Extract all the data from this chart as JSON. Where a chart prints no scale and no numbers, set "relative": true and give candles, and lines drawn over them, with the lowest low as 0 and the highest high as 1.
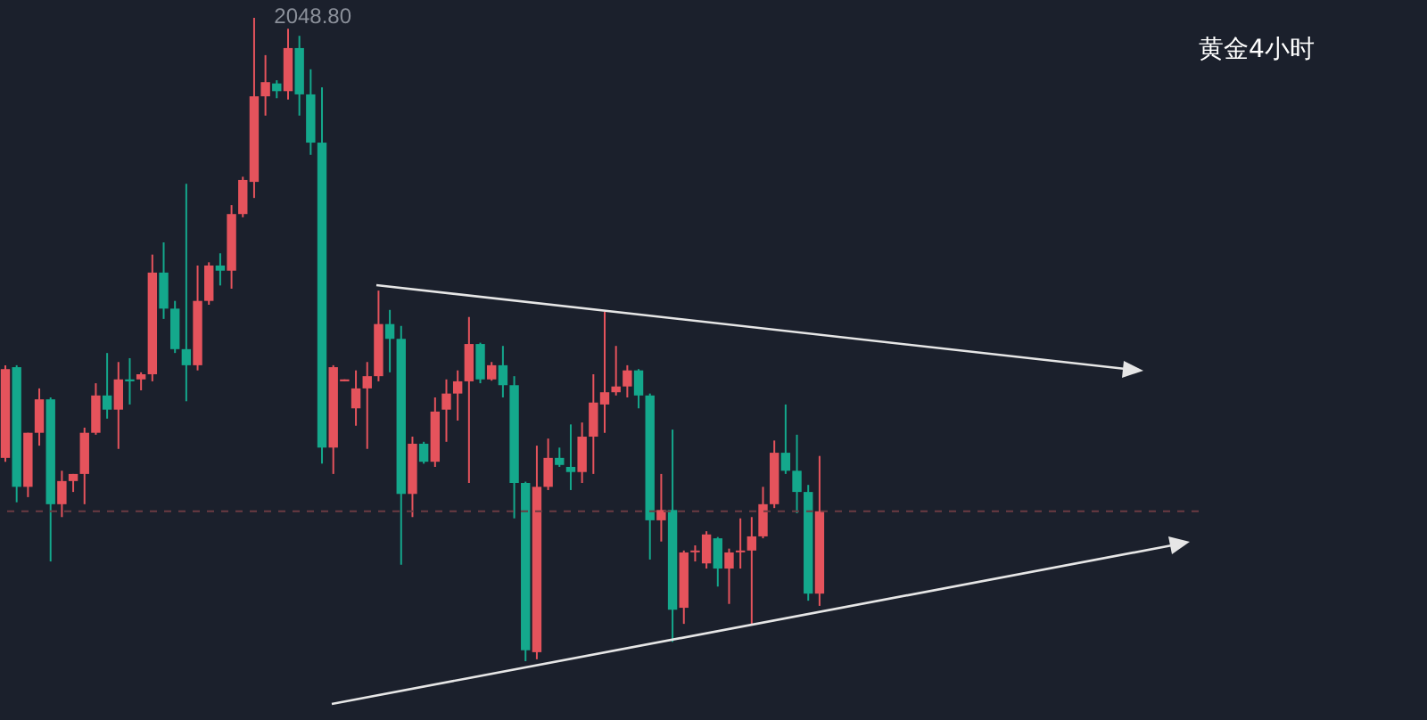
{
  "chart_data": {
    "type": "candlestick",
    "title": "黄金4小时",
    "relative": true,
    "categories": [
      null,
      null,
      null,
      null,
      null,
      null,
      null,
      null,
      null,
      null,
      null,
      null,
      null,
      null,
      null,
      null,
      null,
      null,
      null,
      null,
      null,
      null,
      null,
      null,
      null,
      null,
      null,
      null,
      null,
      null,
      null,
      null,
      null,
      null,
      null,
      null,
      null,
      null,
      null,
      null,
      null,
      null,
      null,
      null,
      null,
      null,
      null,
      null,
      null,
      null,
      null,
      null,
      null,
      null,
      null,
      null,
      null,
      null,
      null,
      null,
      null,
      null,
      null,
      null,
      null,
      null,
      null,
      null,
      null,
      null,
      null,
      null,
      null,
      null,
      null,
      null,
      null,
      null,
      null,
      null,
      null,
      null,
      null,
      null,
      null,
      null,
      null,
      null,
      null,
      null,
      null,
      null,
      null,
      null,
      null,
      null,
      null,
      null,
      null,
      null,
      null,
      null,
      null,
      null,
      null,
      null
    ],
    "ohlc": [
      [
        0.316,
        0.46,
        0.31,
        0.454
      ],
      [
        0.457,
        0.46,
        0.247,
        0.271
      ],
      [
        0.271,
        0.355,
        0.255,
        0.355
      ],
      [
        0.355,
        0.424,
        0.335,
        0.407
      ],
      [
        0.407,
        0.41,
        0.155,
        0.244
      ],
      [
        0.244,
        0.296,
        0.224,
        0.28
      ],
      [
        0.28,
        0.291,
        0.263,
        0.291
      ],
      [
        0.291,
        0.363,
        0.244,
        0.355
      ],
      [
        0.355,
        0.432,
        0.352,
        0.413
      ],
      [
        0.413,
        0.479,
        0.377,
        0.391
      ],
      [
        0.391,
        0.465,
        0.33,
        0.438
      ],
      [
        0.438,
        0.471,
        0.399,
        0.435
      ],
      [
        0.438,
        0.449,
        0.421,
        0.446
      ],
      [
        0.446,
        0.632,
        0.435,
        0.604
      ],
      [
        0.604,
        0.651,
        0.532,
        0.548
      ],
      [
        0.548,
        0.56,
        0.479,
        0.485
      ],
      [
        0.485,
        0.742,
        0.404,
        0.46
      ],
      [
        0.46,
        0.615,
        0.452,
        0.56
      ],
      [
        0.56,
        0.62,
        0.554,
        0.615
      ],
      [
        0.615,
        0.634,
        0.584,
        0.607
      ],
      [
        0.607,
        0.709,
        0.579,
        0.695
      ],
      [
        0.695,
        0.753,
        0.69,
        0.748
      ],
      [
        0.745,
        1,
        0.72,
        0.878
      ],
      [
        0.878,
        0.942,
        0.848,
        0.9
      ],
      [
        0.898,
        0.903,
        0.875,
        0.886
      ],
      [
        0.886,
        0.983,
        0.873,
        0.953
      ],
      [
        0.953,
        0.972,
        0.848,
        0.881
      ],
      [
        0.881,
        0.92,
        0.787,
        0.806
      ],
      [
        0.806,
        0.892,
        0.307,
        0.332
      ],
      [
        0.332,
        0.46,
        0.291,
        0.457
      ],
      [
        0.435,
        0.438,
        0.435,
        0.438
      ],
      [
        0.393,
        0.452,
        0.366,
        0.424
      ],
      [
        0.424,
        0.465,
        0.33,
        0.443
      ],
      [
        0.443,
        0.576,
        0.435,
        0.524
      ],
      [
        0.524,
        0.546,
        0.449,
        0.501
      ],
      [
        0.501,
        0.521,
        0.15,
        0.26
      ],
      [
        0.26,
        0.349,
        0.224,
        0.338
      ],
      [
        0.338,
        0.341,
        0.307,
        0.31
      ],
      [
        0.31,
        0.41,
        0.302,
        0.388
      ],
      [
        0.391,
        0.438,
        0.341,
        0.416
      ],
      [
        0.416,
        0.452,
        0.374,
        0.435
      ],
      [
        0.435,
        0.535,
        0.277,
        0.493
      ],
      [
        0.493,
        0.495,
        0.432,
        0.438
      ],
      [
        0.438,
        0.465,
        0.436,
        0.46
      ],
      [
        0.46,
        0.49,
        0.41,
        0.429
      ],
      [
        0.429,
        0.443,
        0.222,
        0.277
      ],
      [
        0.277,
        0.279,
        0,
        0.017
      ],
      [
        0.014,
        0.335,
        0.003,
        0.271
      ],
      [
        0.271,
        0.346,
        0.266,
        0.316
      ],
      [
        0.316,
        0.332,
        0.302,
        0.305
      ],
      [
        0.302,
        0.368,
        0.266,
        0.294
      ],
      [
        0.294,
        0.371,
        0.277,
        0.349
      ],
      [
        0.349,
        0.446,
        0.291,
        0.402
      ],
      [
        0.399,
        0.543,
        0.355,
        0.418
      ],
      [
        0.418,
        0.49,
        0.413,
        0.427
      ],
      [
        0.427,
        0.46,
        0.41,
        0.452
      ],
      [
        0.452,
        0.454,
        0.393,
        0.413
      ],
      [
        0.413,
        0.416,
        0.158,
        0.219
      ],
      [
        0.219,
        0.291,
        0.186,
        0.235
      ],
      [
        0.235,
        0.36,
        0.03,
        0.08
      ],
      [
        0.083,
        0.172,
        0.058,
        0.169
      ],
      [
        0.17,
        0.18,
        0.155,
        0.172
      ],
      [
        0.152,
        0.202,
        0.144,
        0.197
      ],
      [
        0.191,
        0.193,
        0.116,
        0.144
      ],
      [
        0.144,
        0.175,
        0.089,
        0.169
      ],
      [
        0.17,
        0.222,
        0.144,
        0.172
      ],
      [
        0.172,
        0.224,
        0.058,
        0.194
      ],
      [
        0.194,
        0.271,
        0.191,
        0.244
      ],
      [
        0.244,
        0.343,
        0.238,
        0.324
      ],
      [
        0.324,
        0.399,
        0.291,
        0.296
      ],
      [
        0.296,
        0.352,
        0.23,
        0.263
      ],
      [
        0.263,
        0.274,
        0.094,
        0.105
      ],
      [
        0.105,
        0.319,
        0.086,
        0.233
      ],
      null,
      null,
      null,
      null,
      null,
      null,
      null,
      null,
      null,
      null,
      null,
      null,
      null,
      null,
      null,
      null,
      null,
      null,
      null,
      null,
      null,
      null,
      null,
      null,
      null,
      null,
      null,
      null,
      null,
      null,
      null,
      null,
      null
    ],
    "colors": [
      "#e5535c",
      "#14a88c",
      "#e5535c",
      "#e5535c",
      "#14a88c",
      "#e5535c",
      "#e5535c",
      "#e5535c",
      "#e5535c",
      "#14a88c",
      "#e5535c",
      "#14a88c",
      "#e5535c",
      "#e5535c",
      "#14a88c",
      "#14a88c",
      "#14a88c",
      "#e5535c",
      "#e5535c",
      "#14a88c",
      "#e5535c",
      "#e5535c",
      "#e5535c",
      "#e5535c",
      "#14a88c",
      "#e5535c",
      "#14a88c",
      "#14a88c",
      "#14a88c",
      "#e5535c",
      "#e5535c",
      "#e5535c",
      "#e5535c",
      "#e5535c",
      "#14a88c",
      "#14a88c",
      "#e5535c",
      "#14a88c",
      "#e5535c",
      "#e5535c",
      "#e5535c",
      "#e5535c",
      "#14a88c",
      "#e5535c",
      "#14a88c",
      "#14a88c",
      "#14a88c",
      "#e5535c",
      "#e5535c",
      "#14a88c",
      "#14a88c",
      "#e5535c",
      "#e5535c",
      "#e5535c",
      "#e5535c",
      "#e5535c",
      "#14a88c",
      "#14a88c",
      "#e5535c",
      "#14a88c",
      "#e5535c",
      "#e5535c",
      "#e5535c",
      "#14a88c",
      "#e5535c",
      "#e5535c",
      "#e5535c",
      "#e5535c",
      "#e5535c",
      "#14a88c",
      "#14a88c",
      "#14a88c",
      "#e5535c",
      null,
      null,
      null,
      null,
      null,
      null,
      null,
      null,
      null,
      null,
      null,
      null,
      null,
      null,
      null,
      null,
      null,
      null,
      null,
      null,
      null,
      null,
      null,
      null,
      null,
      null,
      null,
      null,
      null,
      null,
      null,
      null,
      null
    ],
    "ref_lines": [
      {
        "axis": "y",
        "value": 0.233,
        "color": "#6b3b42",
        "line_style": "dashed"
      }
    ],
    "annotations": [
      "2048.80"
    ]
  }
}
